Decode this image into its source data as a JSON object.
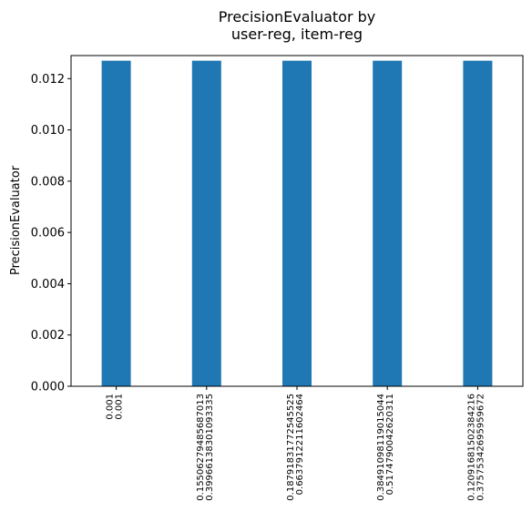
{
  "chart_data": {
    "type": "bar",
    "title": "PrecisionEvaluator by\nuser-reg, item-reg",
    "xlabel": "",
    "ylabel": "PrecisionEvaluator",
    "categories": [
      [
        "0.001",
        "0.001"
      ],
      [
        "0.1550627948568701​3",
        "0.39966138301093335"
      ],
      [
        "0.18791831772545525",
        "0.6637912211602464"
      ],
      [
        "0.38491098119015044",
        "0.5174790042620311"
      ],
      [
        "0.12091681502384216",
        "0.37575342695959672"
      ]
    ],
    "values": [
      0.0127,
      0.0127,
      0.0127,
      0.0127,
      0.0127
    ],
    "ylim": [
      0,
      0.0129
    ],
    "yticks": [
      "0.000",
      "0.002",
      "0.004",
      "0.006",
      "0.008",
      "0.010",
      "0.012"
    ],
    "ytick_values": [
      0,
      0.002,
      0.004,
      0.006,
      0.008,
      0.01,
      0.012
    ],
    "bar_color": "#1f77b4",
    "grid": false,
    "legend": "none"
  }
}
